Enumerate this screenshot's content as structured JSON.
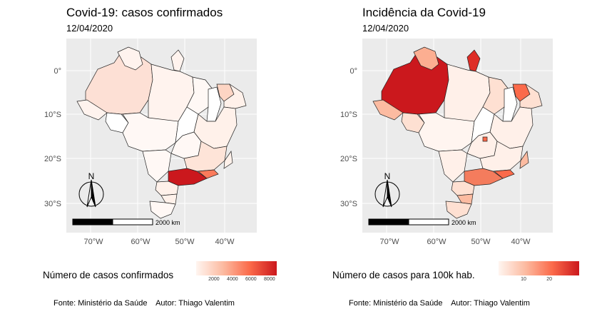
{
  "left": {
    "title": "Covid-19: casos confirmados",
    "subtitle": "12/04/2020",
    "axis_y_ticks": [
      "0°",
      "10°S",
      "20°S",
      "30°S"
    ],
    "axis_x_ticks": [
      "70°W",
      "60°W",
      "50°W",
      "40°W"
    ],
    "north_label": "N",
    "scalebar_label": "2000 km",
    "legend_title": "Número de casos confirmados",
    "legend_ticks": [
      "2000",
      "4000",
      "6000",
      "8000"
    ],
    "legend_colors": [
      "#fff5f0",
      "#cb181d"
    ],
    "caption": "Fonte: Ministério da Saúde    Autor: Thiago Valentim"
  },
  "right": {
    "title": "Incidência da Covid-19",
    "subtitle": "12/04/2020",
    "axis_y_ticks": [
      "0°",
      "10°S",
      "20°S",
      "30°S"
    ],
    "axis_x_ticks": [
      "70°W",
      "60°W",
      "50°W",
      "40°W"
    ],
    "north_label": "N",
    "scalebar_label": "2000 km",
    "legend_title": "Número de casos para 100k hab.",
    "legend_ticks": [
      "10",
      "20"
    ],
    "legend_colors": [
      "#fff5f0",
      "#cb181d"
    ],
    "caption": "Fonte: Ministério da Saúde    Autor: Thiago Valentim"
  },
  "colors": {
    "panel_background": "#ebebeb",
    "state_border": "#222222",
    "highlight": "#cb181d"
  }
}
